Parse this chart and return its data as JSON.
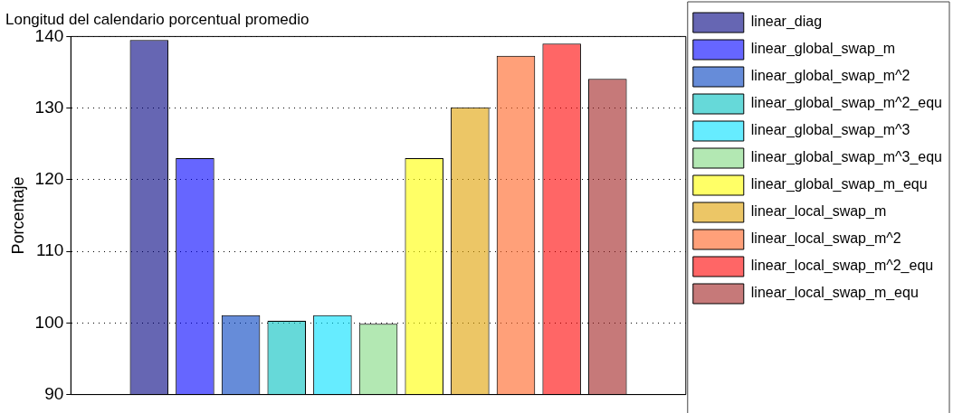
{
  "chart_data": {
    "type": "bar",
    "title": "Longitud del calendario porcentual promedio",
    "ylabel": "Porcentaje",
    "categories": [
      null
    ],
    "series": [
      {
        "name": "linear_diag",
        "color": "#000080",
        "values": [
          139.5
        ]
      },
      {
        "name": "linear_global_swap_m",
        "color": "#0000ff",
        "values": [
          123.0
        ]
      },
      {
        "name": "linear_global_swap_m^2",
        "color": "#0040c0",
        "values": [
          101.1
        ]
      },
      {
        "name": "linear_global_swap_m^2_equ",
        "color": "#00bfbf",
        "values": [
          100.3
        ]
      },
      {
        "name": "linear_global_swap_m^3",
        "color": "#00e0ff",
        "values": [
          101.1
        ]
      },
      {
        "name": "linear_global_swap_m^3_equ",
        "color": "#80d880",
        "values": [
          99.9
        ]
      },
      {
        "name": "linear_global_swap_m_equ",
        "color": "#ffff00",
        "values": [
          123.0
        ]
      },
      {
        "name": "linear_local_swap_m",
        "color": "#e0a000",
        "values": [
          130.1
        ]
      },
      {
        "name": "linear_local_swap_m^2",
        "color": "#ff6020",
        "values": [
          137.3
        ]
      },
      {
        "name": "linear_local_swap_m^2_equ",
        "color": "#ff0000",
        "values": [
          139.0
        ]
      },
      {
        "name": "linear_local_swap_m_equ",
        "color": "#a02020",
        "values": [
          134.1
        ]
      }
    ],
    "ylim": [
      90,
      140
    ],
    "yticks": [
      90,
      100,
      110,
      120,
      130,
      140
    ],
    "grid": "y",
    "legend": "right"
  }
}
